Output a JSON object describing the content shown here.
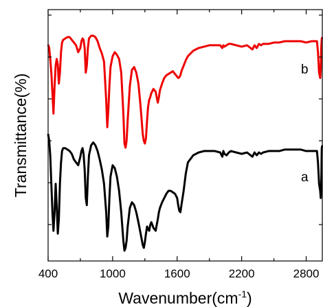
{
  "chart_data": {
    "type": "line",
    "xlabel": "Wavenumber(cm",
    "xlabel_sup": "-1",
    "xlabel_close": ")",
    "ylabel": "Transmittance(%)",
    "xlim": [
      400,
      2950
    ],
    "x_ticks": [
      400,
      1000,
      1600,
      2200,
      2800
    ],
    "x_tick_labels": [
      "400",
      "1000",
      "1600",
      "2200",
      "2800"
    ],
    "y_ticks_shown": false,
    "grid": false,
    "series": [
      {
        "name": "b",
        "color": "#ee0000",
        "x": [
          400,
          410,
          420,
          430,
          440,
          450,
          460,
          470,
          480,
          490,
          500,
          510,
          520,
          530,
          540,
          560,
          580,
          600,
          620,
          640,
          660,
          680,
          700,
          710,
          720,
          730,
          740,
          750,
          760,
          770,
          780,
          800,
          820,
          840,
          860,
          880,
          900,
          920,
          940,
          950,
          960,
          970,
          980,
          1000,
          1020,
          1040,
          1060,
          1080,
          1100,
          1110,
          1120,
          1130,
          1140,
          1160,
          1180,
          1200,
          1220,
          1240,
          1260,
          1280,
          1290,
          1300,
          1310,
          1320,
          1330,
          1340,
          1350,
          1360,
          1380,
          1400,
          1410,
          1420,
          1430,
          1440,
          1460,
          1480,
          1500,
          1520,
          1540,
          1560,
          1580,
          1600,
          1610,
          1620,
          1630,
          1640,
          1660,
          1680,
          1700,
          1750,
          1800,
          1850,
          1900,
          1950,
          2000,
          2020,
          2030,
          2040,
          2060,
          2080,
          2100,
          2150,
          2200,
          2250,
          2300,
          2320,
          2340,
          2360,
          2380,
          2400,
          2450,
          2500,
          2550,
          2600,
          2650,
          2700,
          2750,
          2800,
          2850,
          2900,
          2910,
          2920,
          2930,
          2935,
          2940,
          2945,
          2950
        ],
        "y": [
          90.5,
          88,
          80,
          70,
          55,
          40,
          60,
          75,
          80,
          76,
          62,
          70,
          85,
          92,
          94,
          95,
          96,
          96,
          94,
          92,
          90,
          85,
          88,
          93,
          95,
          94,
          88,
          70,
          75,
          88,
          95,
          97,
          97,
          96,
          93,
          88,
          84,
          78,
          50,
          30,
          42,
          60,
          74,
          82,
          85,
          83,
          80,
          70,
          40,
          18,
          15,
          20,
          35,
          60,
          72,
          74,
          70,
          62,
          45,
          25,
          20,
          18,
          22,
          35,
          45,
          50,
          52,
          55,
          58,
          56,
          52,
          48,
          52,
          57,
          62,
          66,
          68,
          69,
          70,
          71,
          69,
          67,
          66,
          66.5,
          68,
          71,
          75,
          79,
          82,
          86,
          88,
          89,
          90,
          90,
          90,
          88,
          90,
          89,
          90,
          91,
          91,
          90,
          89,
          90,
          87,
          90,
          88,
          91,
          90,
          91,
          91,
          92,
          92,
          93,
          93,
          93,
          93,
          92,
          93,
          93,
          85,
          70,
          66,
          72,
          88,
          95,
          96
        ]
      },
      {
        "name": "a",
        "color": "#000000",
        "x": [
          400,
          410,
          420,
          430,
          440,
          450,
          460,
          470,
          480,
          490,
          500,
          510,
          520,
          530,
          540,
          560,
          580,
          600,
          620,
          640,
          660,
          680,
          700,
          710,
          720,
          730,
          740,
          750,
          760,
          770,
          780,
          800,
          820,
          840,
          860,
          880,
          900,
          920,
          940,
          950,
          960,
          970,
          980,
          1000,
          1020,
          1040,
          1060,
          1080,
          1100,
          1110,
          1120,
          1130,
          1140,
          1160,
          1180,
          1200,
          1220,
          1240,
          1260,
          1280,
          1290,
          1300,
          1310,
          1320,
          1330,
          1340,
          1350,
          1360,
          1380,
          1400,
          1410,
          1420,
          1430,
          1440,
          1460,
          1480,
          1500,
          1520,
          1540,
          1560,
          1580,
          1600,
          1610,
          1620,
          1630,
          1640,
          1660,
          1680,
          1700,
          1750,
          1800,
          1850,
          1900,
          1950,
          2000,
          2020,
          2030,
          2040,
          2060,
          2080,
          2100,
          2150,
          2200,
          2250,
          2300,
          2320,
          2340,
          2360,
          2380,
          2400,
          2450,
          2500,
          2550,
          2600,
          2650,
          2700,
          2750,
          2800,
          2850,
          2900,
          2910,
          2920,
          2930,
          2935,
          2940,
          2945,
          2950
        ],
        "y": [
          90,
          85,
          75,
          55,
          35,
          22,
          35,
          55,
          40,
          20,
          30,
          55,
          70,
          78,
          80,
          80,
          79,
          78,
          76,
          72,
          70,
          68,
          74,
          78,
          80,
          76,
          65,
          45,
          40,
          60,
          75,
          82,
          84,
          82,
          78,
          72,
          65,
          55,
          35,
          18,
          25,
          45,
          60,
          68,
          66,
          60,
          50,
          35,
          15,
          8,
          10,
          15,
          25,
          38,
          42,
          40,
          35,
          28,
          20,
          12,
          10,
          14,
          20,
          25,
          23,
          22,
          26,
          28,
          24,
          22,
          26,
          30,
          35,
          38,
          42,
          45,
          48,
          50,
          50,
          49,
          48,
          45,
          40,
          36,
          35,
          40,
          50,
          62,
          70,
          75,
          77,
          78,
          78,
          78,
          77,
          74,
          78,
          76,
          75,
          77,
          78,
          77,
          76,
          77,
          74,
          77,
          75,
          77,
          76,
          77,
          78,
          78,
          78,
          79,
          79,
          79,
          79,
          78,
          78,
          78,
          70,
          55,
          50,
          45,
          52,
          80,
          82
        ]
      }
    ]
  }
}
